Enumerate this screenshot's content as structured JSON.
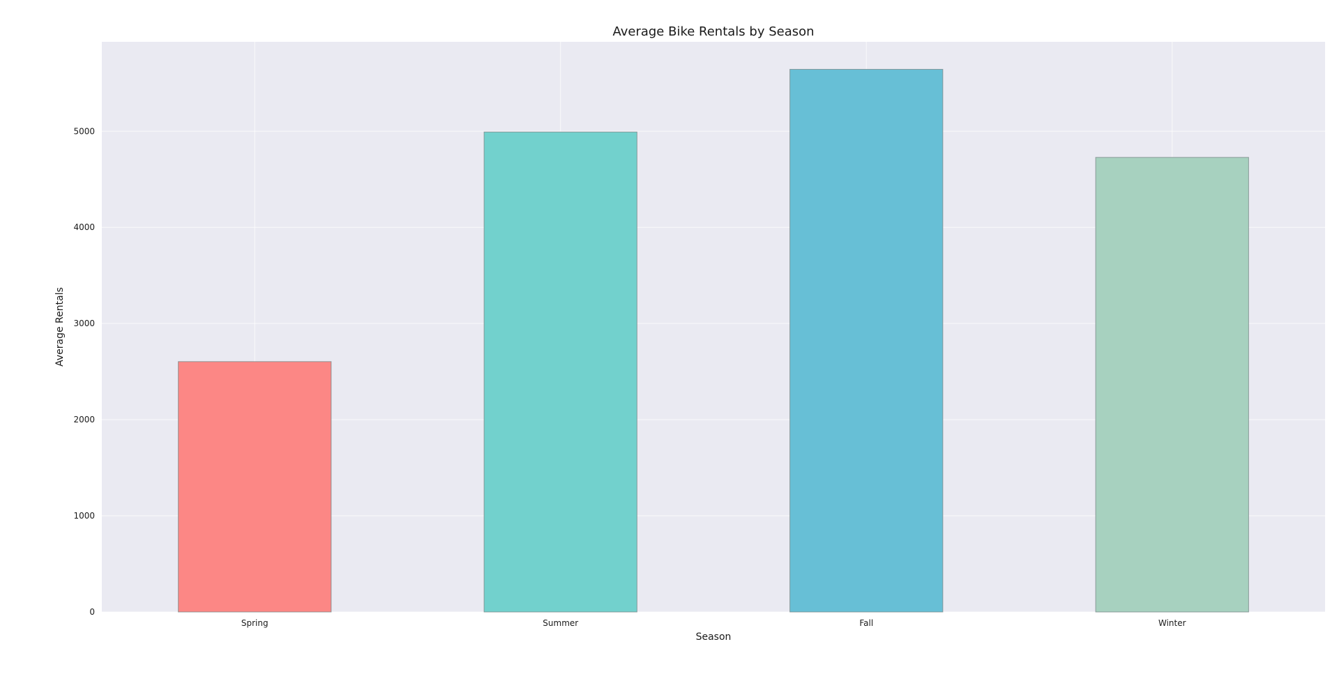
{
  "chart_data": {
    "type": "bar",
    "title": "Average Bike Rentals by Season",
    "xlabel": "Season",
    "ylabel": "Average Rentals",
    "categories": [
      "Spring",
      "Summer",
      "Fall",
      "Winter"
    ],
    "values": [
      2604,
      4992,
      5644,
      4728
    ],
    "ylim": [
      0,
      5930
    ],
    "yticks": [
      0,
      1000,
      2000,
      3000,
      4000,
      5000
    ],
    "grid": true,
    "colors": [
      "#fc8785",
      "#72d1cd",
      "#67bfd6",
      "#a7d1bf"
    ],
    "background": "#eaeaf2"
  }
}
